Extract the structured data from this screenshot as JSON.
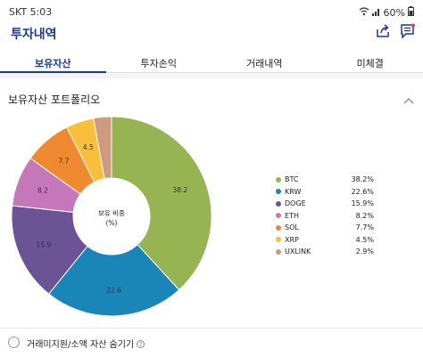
{
  "statusbar": {
    "time": "SKT 5:03",
    "battery": "60%"
  },
  "appbar": {
    "title": "투자내역"
  },
  "tabs": [
    {
      "label": "보유자산",
      "active": true
    },
    {
      "label": "투자손익",
      "active": false
    },
    {
      "label": "거래내역",
      "active": false
    },
    {
      "label": "미체결",
      "active": false
    }
  ],
  "portfolio": {
    "header": "보유자산 포트폴리오",
    "center_label_line1": "보유 비중",
    "center_label_line2": "(%)"
  },
  "chart_data": {
    "type": "pie",
    "title": "",
    "categories": [
      "BTC",
      "KRW",
      "DOGE",
      "ETH",
      "SOL",
      "XRP",
      "UXLINK"
    ],
    "values": [
      38.2,
      22.6,
      15.9,
      8.2,
      7.7,
      4.5,
      2.9
    ],
    "value_labels": [
      "38.2",
      "22.6",
      "15.9",
      "8.2",
      "7.7",
      "4.5",
      ""
    ],
    "legend_pct": [
      "38.2%",
      "22.6%",
      "15.9%",
      "8.2%",
      "7.7%",
      "4.5%",
      "2.9%"
    ],
    "colors": [
      "#97b453",
      "#1a86b8",
      "#6b5496",
      "#c478ba",
      "#f08a31",
      "#f8bf3a",
      "#cc9a7d"
    ],
    "donut": true,
    "legend_position": "right"
  },
  "bottom": {
    "hide_label": "거래미지원/소액 자산 숨기기"
  },
  "colors": {
    "brand": "#1b3a8a"
  }
}
